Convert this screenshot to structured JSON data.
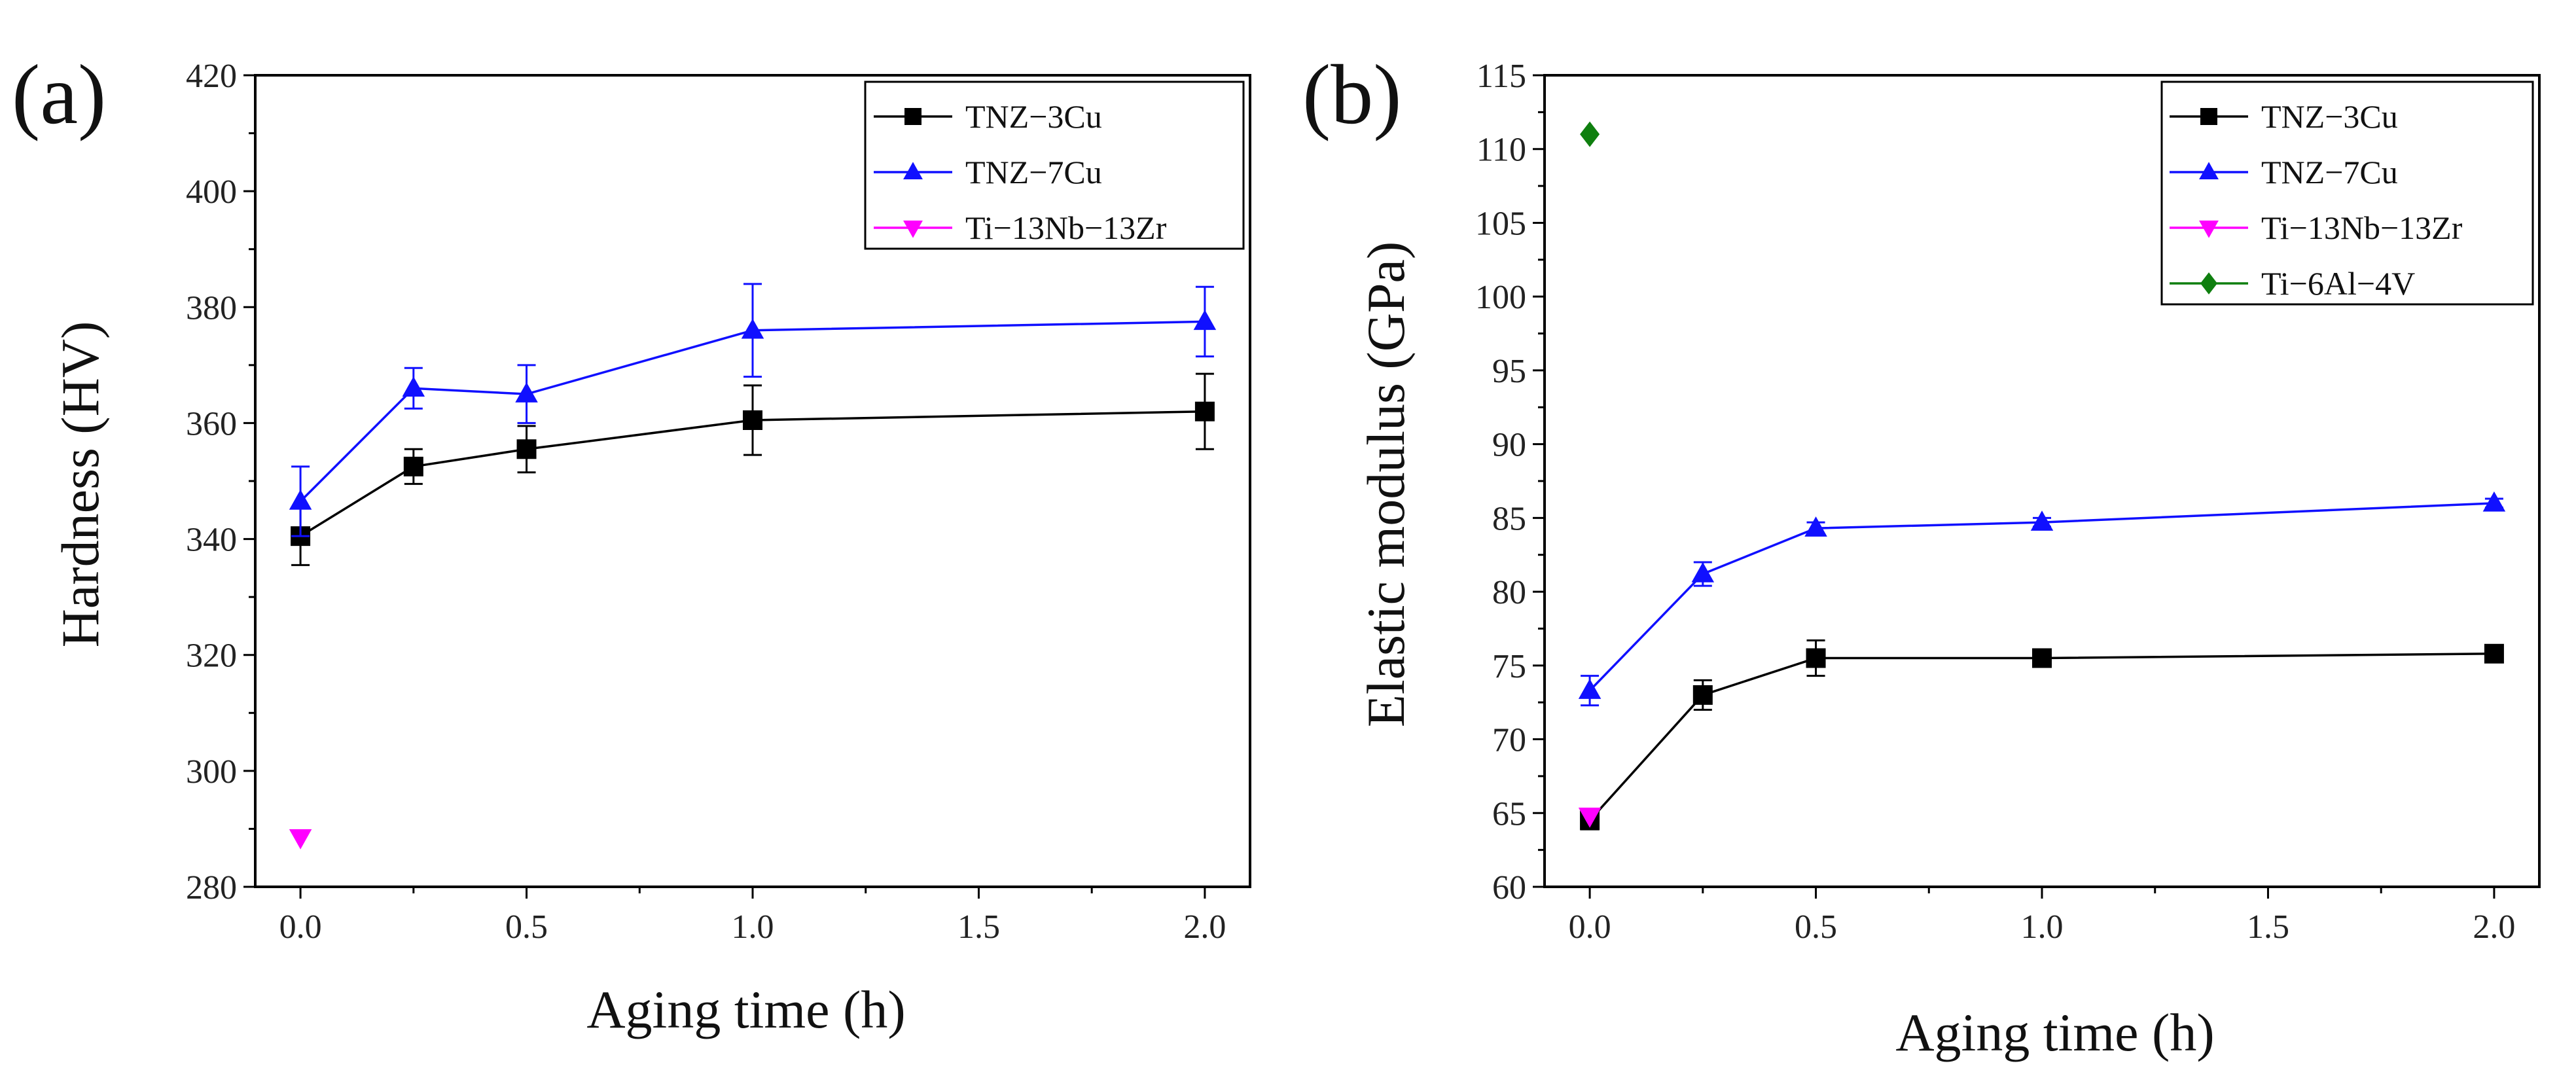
{
  "chart_data": [
    {
      "type": "line",
      "panel_label": "(a)",
      "title": "",
      "xlabel": "Aging time (h)",
      "ylabel": "Hardness (HV)",
      "xlim": [
        -0.1,
        2.1
      ],
      "ylim": [
        280,
        420
      ],
      "xticks": [
        "0.0",
        "0.5",
        "1.0",
        "1.5",
        "2.0"
      ],
      "yticks": [
        "280",
        "300",
        "320",
        "340",
        "360",
        "380",
        "400",
        "420"
      ],
      "legend_position": "top-right",
      "series": [
        {
          "name": "TNZ−3Cu",
          "color": "#000000",
          "marker": "square",
          "x": [
            0,
            0.25,
            0.5,
            1.0,
            2.0
          ],
          "y": [
            340.5,
            352.5,
            355.5,
            360.5,
            362
          ],
          "err": [
            5,
            3,
            4,
            6,
            6.5
          ]
        },
        {
          "name": "TNZ−7Cu",
          "color": "#1010ff",
          "marker": "triangle-up",
          "x": [
            0,
            0.25,
            0.5,
            1.0,
            2.0
          ],
          "y": [
            346.5,
            366,
            365,
            376,
            377.5
          ],
          "err": [
            6,
            3.5,
            5,
            8,
            6
          ]
        },
        {
          "name": "Ti−13Nb−13Zr",
          "color": "#ff00ff",
          "marker": "triangle-down",
          "x": [
            0
          ],
          "y": [
            288.5
          ],
          "err": [
            0
          ]
        }
      ]
    },
    {
      "type": "line",
      "panel_label": "(b)",
      "title": "",
      "xlabel": "Aging time (h)",
      "ylabel": "Elastic modulus (GPa)",
      "xlim": [
        -0.1,
        2.1
      ],
      "ylim": [
        60,
        115
      ],
      "xticks": [
        "0.0",
        "0.5",
        "1.0",
        "1.5",
        "2.0"
      ],
      "yticks": [
        "60",
        "65",
        "70",
        "75",
        "80",
        "85",
        "90",
        "95",
        "100",
        "105",
        "110",
        "115"
      ],
      "legend_position": "top-right",
      "series": [
        {
          "name": "TNZ−3Cu",
          "color": "#000000",
          "marker": "square",
          "x": [
            0,
            0.25,
            0.5,
            1.0,
            2.0
          ],
          "y": [
            64.5,
            73,
            75.5,
            75.5,
            75.8
          ],
          "err": [
            0.6,
            1.0,
            1.2,
            0.3,
            0.4
          ]
        },
        {
          "name": "TNZ−7Cu",
          "color": "#1010ff",
          "marker": "triangle-up",
          "x": [
            0,
            0.25,
            0.5,
            1.0,
            2.0
          ],
          "y": [
            73.3,
            81.2,
            84.3,
            84.7,
            86
          ],
          "err": [
            1.0,
            0.8,
            0.4,
            0.3,
            0.3
          ]
        },
        {
          "name": "Ti−13Nb−13Zr",
          "color": "#ff00ff",
          "marker": "triangle-down",
          "x": [
            0
          ],
          "y": [
            64.8
          ],
          "err": [
            0
          ]
        },
        {
          "name": "Ti−6Al−4V",
          "color": "#0f7f0f",
          "marker": "diamond",
          "x": [
            0
          ],
          "y": [
            111
          ],
          "err": [
            0
          ]
        }
      ]
    }
  ]
}
